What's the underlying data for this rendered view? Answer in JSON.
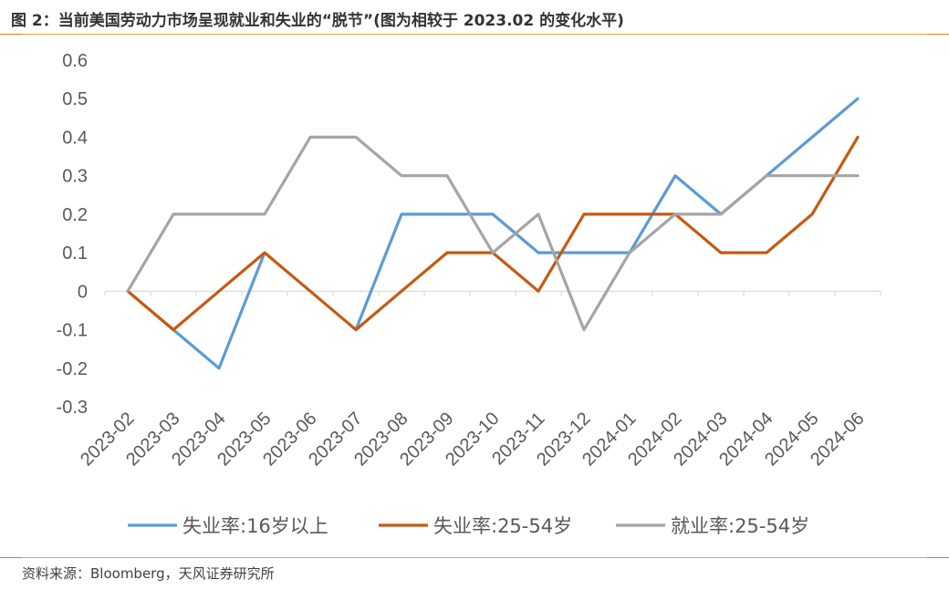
{
  "header": {
    "title": "图 2：当前美国劳动力市场呈现就业和失业的“脱节”(图为相较于 2023.02 的变化水平)"
  },
  "footer": {
    "source": "资料来源：Bloomberg，天风证券研究所"
  },
  "colors": {
    "rule": "#f0a040",
    "rule_cap": "#e07a1a"
  },
  "chart_data": {
    "type": "line",
    "title": "",
    "xlabel": "",
    "ylabel": "",
    "ylim": [
      -0.3,
      0.6
    ],
    "yticks": [
      "0.6",
      "0.5",
      "0.4",
      "0.3",
      "0.2",
      "0.1",
      "0",
      "-0.1",
      "-0.2",
      "-0.3"
    ],
    "categories": [
      "2023-02",
      "2023-03",
      "2023-04",
      "2023-05",
      "2023-06",
      "2023-07",
      "2023-08",
      "2023-09",
      "2023-10",
      "2023-11",
      "2023-12",
      "2024-01",
      "2024-02",
      "2024-03",
      "2024-04",
      "2024-05",
      "2024-06"
    ],
    "grid": false,
    "legend_position": "bottom",
    "series": [
      {
        "name": "失业率:16岁以上",
        "color": "#5b9bd5",
        "values": [
          0,
          -0.1,
          -0.2,
          0.1,
          null,
          -0.1,
          0.2,
          0.2,
          0.2,
          0.1,
          0.1,
          0.1,
          0.3,
          0.2,
          0.3,
          0.4,
          0.5
        ]
      },
      {
        "name": "失业率:25-54岁",
        "color": "#c55a11",
        "values": [
          0,
          -0.1,
          0,
          0.1,
          0,
          -0.1,
          0,
          0.1,
          0.1,
          0,
          0.2,
          0.2,
          0.2,
          0.1,
          0.1,
          0.2,
          0.4
        ]
      },
      {
        "name": "就业率:25-54岁",
        "color": "#a5a5a5",
        "values": [
          0,
          0.2,
          0.2,
          0.2,
          0.4,
          0.4,
          0.3,
          0.3,
          0.1,
          0.2,
          -0.1,
          0.1,
          0.2,
          0.2,
          0.3,
          0.3,
          0.3
        ]
      }
    ]
  }
}
